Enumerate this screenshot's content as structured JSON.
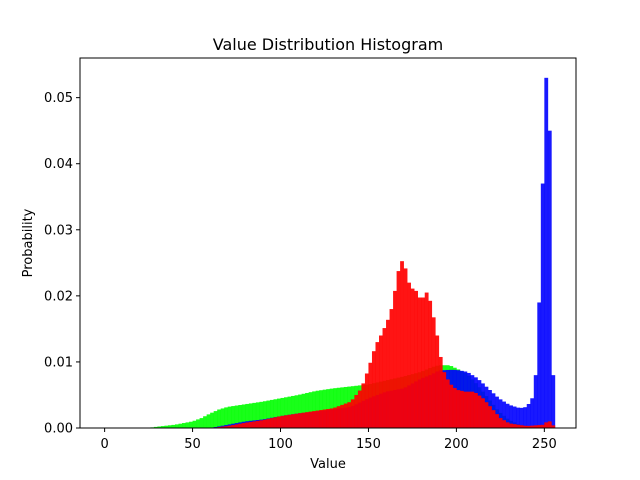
{
  "chart_data": {
    "type": "bar",
    "title": "Value Distribution Histogram",
    "xlabel": "Value",
    "ylabel": "Probability",
    "xlim": [
      -14,
      268
    ],
    "ylim": [
      0,
      0.056
    ],
    "x_ticks": [
      "0",
      "50",
      "100",
      "150",
      "200",
      "250"
    ],
    "y_ticks": [
      "0.00",
      "0.01",
      "0.02",
      "0.03",
      "0.04",
      "0.05"
    ],
    "grid": false,
    "bin_width": 2,
    "series": [
      {
        "color": "#00ff00",
        "opacity": 0.9,
        "points": [
          [
            24,
            0
          ],
          [
            30,
            0.0002
          ],
          [
            40,
            0.0005
          ],
          [
            50,
            0.001
          ],
          [
            55,
            0.0015
          ],
          [
            60,
            0.0022
          ],
          [
            65,
            0.0028
          ],
          [
            70,
            0.0032
          ],
          [
            80,
            0.0036
          ],
          [
            90,
            0.004
          ],
          [
            100,
            0.0045
          ],
          [
            110,
            0.005
          ],
          [
            120,
            0.0056
          ],
          [
            130,
            0.006
          ],
          [
            140,
            0.0063
          ],
          [
            150,
            0.0066
          ],
          [
            160,
            0.0072
          ],
          [
            170,
            0.0078
          ],
          [
            180,
            0.0085
          ],
          [
            186,
            0.0092
          ],
          [
            190,
            0.0095
          ],
          [
            196,
            0.0095
          ],
          [
            200,
            0.009
          ],
          [
            206,
            0.0082
          ],
          [
            212,
            0.0065
          ],
          [
            218,
            0.0045
          ],
          [
            224,
            0.0025
          ],
          [
            230,
            0.0012
          ],
          [
            236,
            0.0005
          ],
          [
            242,
            0.0002
          ],
          [
            250,
            0.0001
          ],
          [
            256,
            0
          ]
        ]
      },
      {
        "color": "#0000ff",
        "opacity": 0.9,
        "points": [
          [
            60,
            0
          ],
          [
            70,
            0.0005
          ],
          [
            80,
            0.001
          ],
          [
            90,
            0.0013
          ],
          [
            100,
            0.0018
          ],
          [
            110,
            0.0022
          ],
          [
            120,
            0.0025
          ],
          [
            130,
            0.0028
          ],
          [
            140,
            0.0032
          ],
          [
            150,
            0.0045
          ],
          [
            160,
            0.0055
          ],
          [
            170,
            0.006
          ],
          [
            180,
            0.0075
          ],
          [
            185,
            0.008
          ],
          [
            190,
            0.0087
          ],
          [
            196,
            0.0088
          ],
          [
            200,
            0.0088
          ],
          [
            206,
            0.0085
          ],
          [
            212,
            0.0075
          ],
          [
            218,
            0.006
          ],
          [
            224,
            0.0045
          ],
          [
            230,
            0.0035
          ],
          [
            236,
            0.003
          ],
          [
            240,
            0.0032
          ],
          [
            243,
            0.0045
          ],
          [
            245,
            0.008
          ],
          [
            246,
            0.013
          ],
          [
            247,
            0.019
          ],
          [
            248,
            0.026
          ],
          [
            249,
            0.037
          ],
          [
            250,
            0.044
          ],
          [
            251,
            0.053
          ],
          [
            252,
            0.053
          ],
          [
            253,
            0.045
          ],
          [
            254,
            0.027
          ],
          [
            255,
            0.008
          ],
          [
            256,
            0
          ]
        ]
      },
      {
        "color": "#ff0000",
        "opacity": 0.92,
        "points": [
          [
            60,
            0
          ],
          [
            70,
            0.0003
          ],
          [
            80,
            0.0008
          ],
          [
            90,
            0.0012
          ],
          [
            100,
            0.0018
          ],
          [
            110,
            0.0022
          ],
          [
            120,
            0.0026
          ],
          [
            130,
            0.003
          ],
          [
            140,
            0.004
          ],
          [
            146,
            0.006
          ],
          [
            150,
            0.009
          ],
          [
            154,
            0.0125
          ],
          [
            158,
            0.0145
          ],
          [
            162,
            0.017
          ],
          [
            164,
            0.019
          ],
          [
            166,
            0.0225
          ],
          [
            168,
            0.025
          ],
          [
            170,
            0.0255
          ],
          [
            172,
            0.0228
          ],
          [
            174,
            0.0212
          ],
          [
            176,
            0.021
          ],
          [
            178,
            0.0205
          ],
          [
            180,
            0.019
          ],
          [
            182,
            0.0205
          ],
          [
            184,
            0.0205
          ],
          [
            186,
            0.018
          ],
          [
            188,
            0.0155
          ],
          [
            190,
            0.0125
          ],
          [
            192,
            0.009
          ],
          [
            196,
            0.0068
          ],
          [
            200,
            0.0058
          ],
          [
            205,
            0.0055
          ],
          [
            210,
            0.0055
          ],
          [
            215,
            0.0045
          ],
          [
            220,
            0.003
          ],
          [
            225,
            0.0015
          ],
          [
            230,
            0.0007
          ],
          [
            240,
            0.0003
          ],
          [
            250,
            0.0005
          ],
          [
            252,
            0.0012
          ],
          [
            254,
            0.0008
          ],
          [
            256,
            0
          ]
        ]
      }
    ]
  }
}
